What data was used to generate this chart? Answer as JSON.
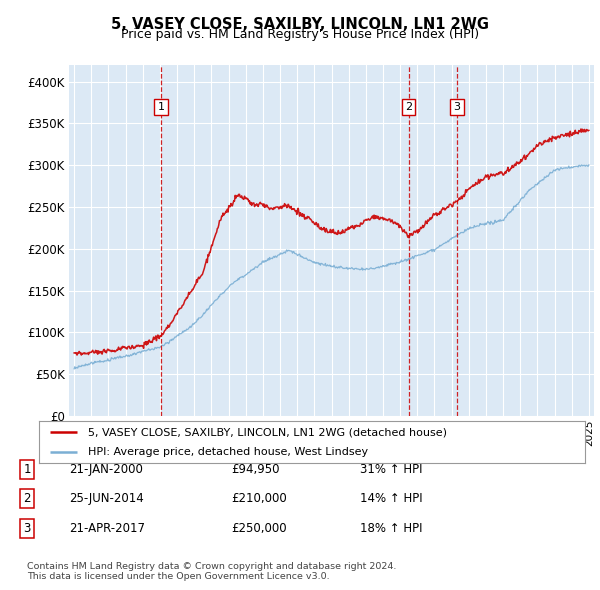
{
  "title": "5, VASEY CLOSE, SAXILBY, LINCOLN, LN1 2WG",
  "subtitle": "Price paid vs. HM Land Registry's House Price Index (HPI)",
  "plot_bg_color": "#dce9f5",
  "grid_color": "#ffffff",
  "ylim": [
    0,
    420000
  ],
  "yticks": [
    0,
    50000,
    100000,
    150000,
    200000,
    250000,
    300000,
    350000,
    400000
  ],
  "ytick_labels": [
    "£0",
    "£50K",
    "£100K",
    "£150K",
    "£200K",
    "£250K",
    "£300K",
    "£350K",
    "£400K"
  ],
  "xlim_start": 1994.7,
  "xlim_end": 2025.3,
  "transactions": [
    {
      "date": 2000.06,
      "price": 94950,
      "label": "1"
    },
    {
      "date": 2014.49,
      "price": 210000,
      "label": "2"
    },
    {
      "date": 2017.31,
      "price": 250000,
      "label": "3"
    }
  ],
  "legend_entries": [
    "5, VASEY CLOSE, SAXILBY, LINCOLN, LN1 2WG (detached house)",
    "HPI: Average price, detached house, West Lindsey"
  ],
  "table_rows": [
    [
      "1",
      "21-JAN-2000",
      "£94,950",
      "31% ↑ HPI"
    ],
    [
      "2",
      "25-JUN-2014",
      "£210,000",
      "14% ↑ HPI"
    ],
    [
      "3",
      "21-APR-2017",
      "£250,000",
      "18% ↑ HPI"
    ]
  ],
  "footnote": "Contains HM Land Registry data © Crown copyright and database right 2024.\nThis data is licensed under the Open Government Licence v3.0.",
  "red_color": "#cc0000",
  "blue_color": "#7bafd4",
  "figsize": [
    6.0,
    5.9
  ],
  "dpi": 100
}
